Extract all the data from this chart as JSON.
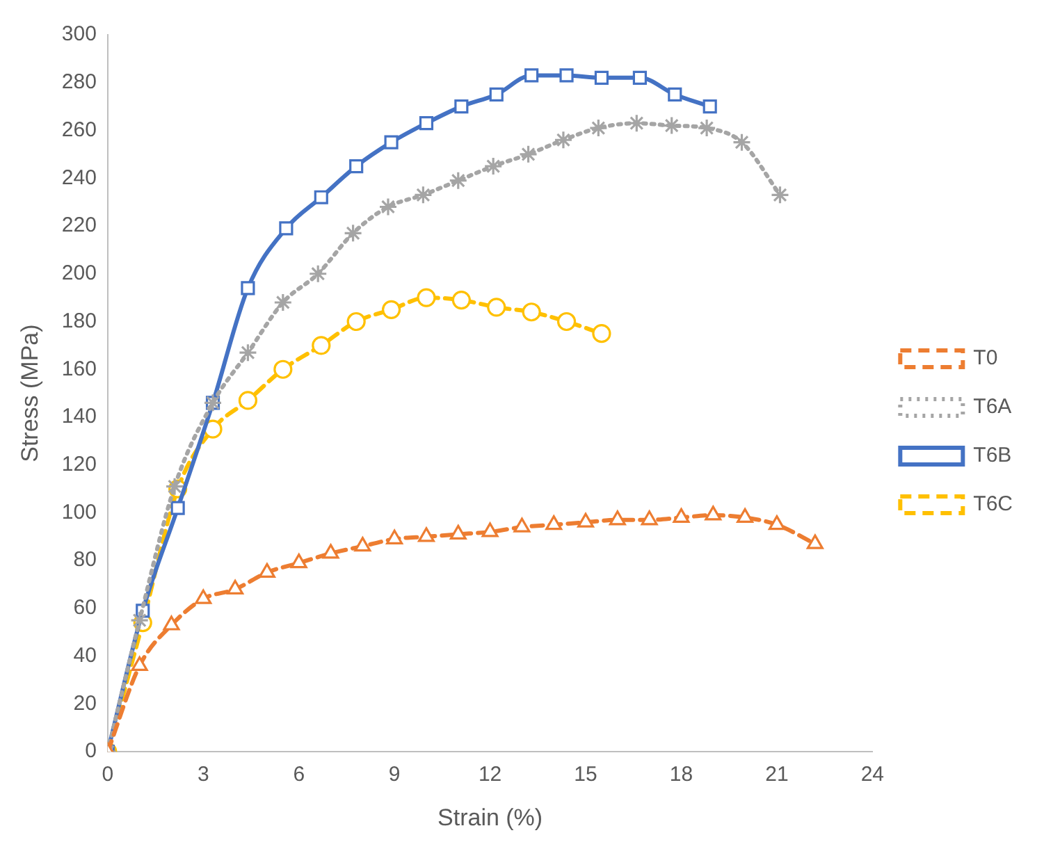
{
  "chart_data": {
    "type": "line",
    "xlabel": "Strain (%)",
    "ylabel": "Stress (MPa)",
    "xlim": [
      0,
      24
    ],
    "xticks": [
      0,
      3,
      6,
      9,
      12,
      15,
      18,
      21,
      24
    ],
    "ylim": [
      0,
      300
    ],
    "yticks": [
      0,
      20,
      40,
      60,
      80,
      100,
      120,
      140,
      160,
      180,
      200,
      220,
      240,
      260,
      280,
      300
    ],
    "grid": false,
    "legend": "right",
    "series": [
      {
        "name": "T0",
        "color": "#ed7d31",
        "marker": "triangle",
        "line_style": "dashed",
        "x": [
          0,
          1,
          2,
          3,
          4,
          5,
          6,
          7,
          8,
          9,
          10,
          11,
          12,
          13,
          14,
          15,
          16,
          17,
          18,
          19,
          20,
          21,
          22.2
        ],
        "values": [
          0,
          36,
          53,
          64,
          68,
          75,
          79,
          83,
          86,
          89,
          90,
          91,
          92,
          94,
          95,
          96,
          97,
          97,
          98,
          99,
          98,
          95,
          87
        ]
      },
      {
        "name": "T6A",
        "color": "#a5a5a5",
        "marker": "cross",
        "line_style": "dotted",
        "x": [
          0,
          1,
          2.1,
          3.3,
          4.4,
          5.5,
          6.6,
          7.7,
          8.8,
          9.9,
          11,
          12.1,
          13.2,
          14.3,
          15.4,
          16.6,
          17.7,
          18.8,
          19.9,
          21.1
        ],
        "values": [
          0,
          55,
          111,
          146,
          167,
          188,
          200,
          217,
          228,
          233,
          239,
          245,
          250,
          256,
          261,
          263,
          262,
          261,
          255,
          233
        ]
      },
      {
        "name": "T6B",
        "color": "#4472c4",
        "marker": "square",
        "line_style": "solid",
        "x": [
          0,
          1.1,
          2.2,
          3.3,
          4.4,
          5.6,
          6.7,
          7.8,
          8.9,
          10,
          11.1,
          12.2,
          13.3,
          14.4,
          15.5,
          16.7,
          17.8,
          18.9
        ],
        "values": [
          0,
          59,
          102,
          146,
          194,
          219,
          232,
          245,
          255,
          263,
          270,
          275,
          283,
          283,
          282,
          282,
          275,
          270
        ]
      },
      {
        "name": "T6C",
        "color": "#ffc000",
        "marker": "circle",
        "line_style": "dashed",
        "x": [
          0,
          1.1,
          2.2,
          3.3,
          4.4,
          5.5,
          6.7,
          7.8,
          8.9,
          10,
          11.1,
          12.2,
          13.3,
          14.4,
          15.5
        ],
        "values": [
          0,
          54,
          110,
          135,
          147,
          160,
          170,
          180,
          185,
          190,
          189,
          186,
          184,
          180,
          175
        ]
      }
    ]
  }
}
